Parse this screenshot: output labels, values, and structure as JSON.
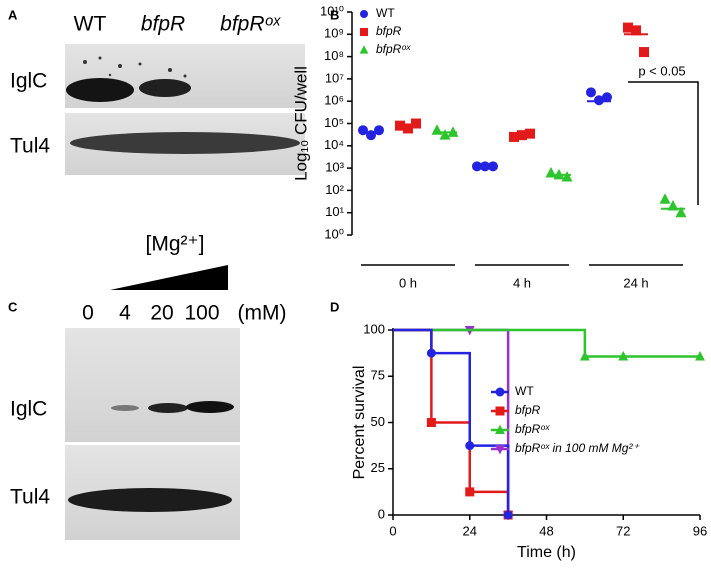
{
  "panels": {
    "A": {
      "label": "A",
      "lanes": [
        "WT",
        "bfpR",
        "bfpRᵒˣ"
      ],
      "rows": [
        "IglC",
        "Tul4"
      ]
    },
    "C": {
      "label": "C",
      "treatment": "[Mg²⁺]",
      "lanes": [
        "0",
        "4",
        "20",
        "100",
        "(mM)"
      ],
      "rows": [
        "IglC",
        "Tul4"
      ]
    }
  },
  "chart_data": [
    {
      "type": "scatter",
      "panel_label": "B",
      "ylabel": "Log₁₀ CFU/well",
      "log_scale": true,
      "categories": [
        "0 h",
        "4 h",
        "24 h"
      ],
      "ylim": [
        1,
        10000000000
      ],
      "yticks": [
        {
          "value": 1,
          "label": "10⁰"
        },
        {
          "value": 10,
          "label": "10¹"
        },
        {
          "value": 100,
          "label": "10²"
        },
        {
          "value": 1000,
          "label": "10³"
        },
        {
          "value": 10000,
          "label": "10⁴"
        },
        {
          "value": 100000,
          "label": "10⁵"
        },
        {
          "value": 1000000,
          "label": "10⁶"
        },
        {
          "value": 10000000,
          "label": "10⁷"
        },
        {
          "value": 100000000,
          "label": "10⁸"
        },
        {
          "value": 1000000000,
          "label": "10⁹"
        },
        {
          "value": 10000000000,
          "label": "10¹⁰"
        }
      ],
      "legend": "upper left",
      "annotation": "p < 0.05",
      "series": [
        {
          "name": "WT",
          "color": "#2323e0",
          "marker": "circle",
          "values": [
            [
              50000,
              30000,
              50000
            ],
            [
              1200,
              1200,
              1200
            ],
            [
              2500000,
              1100000,
              1500000
            ]
          ],
          "means": [
            40000,
            1200,
            1000000
          ]
        },
        {
          "name": "bfpR",
          "color": "#e31a1a",
          "marker": "square",
          "values": [
            [
              80000,
              60000,
              100000
            ],
            [
              25000,
              30000,
              35000
            ],
            [
              2000000000,
              1500000000,
              160000000
            ]
          ],
          "means": [
            80000,
            30000,
            1000000000
          ]
        },
        {
          "name": "bfpRᵒˣ",
          "color": "#2ec42e",
          "marker": "triangle",
          "values": [
            [
              50000,
              30000,
              40000
            ],
            [
              600,
              500,
              400
            ],
            [
              40,
              20,
              10
            ]
          ],
          "means": [
            40000,
            500,
            15
          ]
        }
      ]
    },
    {
      "type": "step",
      "panel_label": "D",
      "xlabel": "Time (h)",
      "ylabel": "Percent survival",
      "xlim": [
        0,
        96
      ],
      "ylim": [
        0,
        100
      ],
      "xticks": [
        0,
        24,
        48,
        72,
        96
      ],
      "yticks": [
        0,
        25,
        50,
        75,
        100
      ],
      "legend": "center right",
      "series": [
        {
          "name": "WT",
          "color": "#2323e0",
          "marker": "circle",
          "x": [
            0,
            12,
            24,
            36
          ],
          "values": [
            100,
            87.5,
            37.5,
            0
          ]
        },
        {
          "name": "bfpR",
          "color": "#e31a1a",
          "marker": "square",
          "x": [
            0,
            12,
            24,
            36
          ],
          "values": [
            100,
            50,
            12.5,
            0
          ]
        },
        {
          "name": "bfpRᵒˣ",
          "color": "#2ec42e",
          "marker": "triangle",
          "x": [
            0,
            60,
            72,
            96
          ],
          "values": [
            100,
            85.7,
            85.7,
            85.7
          ]
        },
        {
          "name": "bfpRᵒˣ in 100 mM Mg²⁺",
          "color": "#9b30d0",
          "marker": "triangle-down",
          "x": [
            0,
            24,
            36
          ],
          "values": [
            100,
            100,
            0
          ]
        }
      ]
    }
  ]
}
